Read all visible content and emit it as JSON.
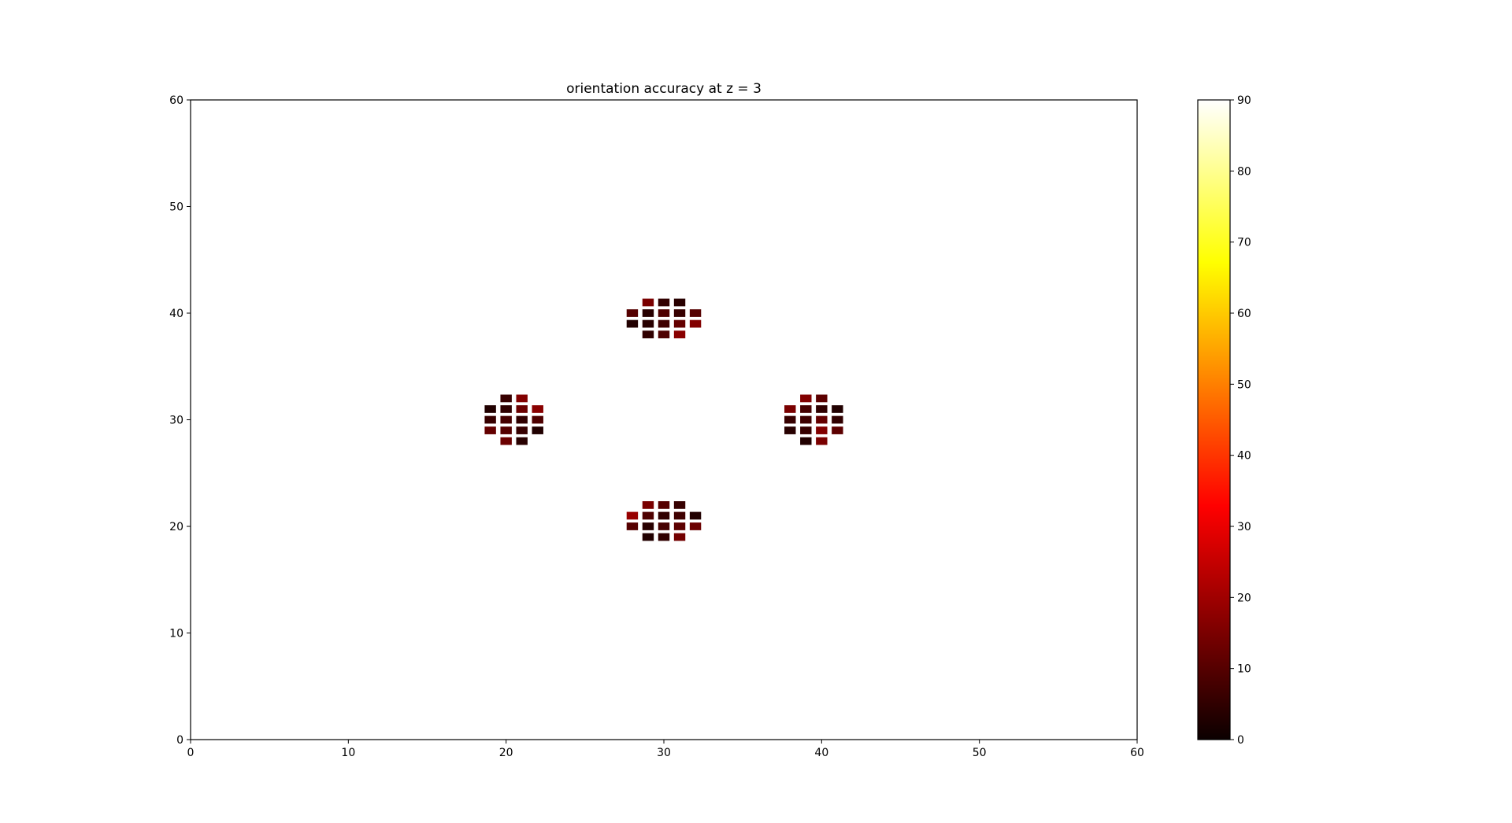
{
  "chart_data": {
    "type": "heatmap",
    "title": "orientation accuracy at z = 3",
    "xlabel": "",
    "ylabel": "",
    "xlim": [
      0,
      60
    ],
    "ylim": [
      0,
      60
    ],
    "x_ticks": [
      0,
      10,
      20,
      30,
      40,
      50,
      60
    ],
    "y_ticks": [
      0,
      10,
      20,
      30,
      40,
      50,
      60
    ],
    "grid": false,
    "colormap": "hot",
    "colorbar": {
      "range": [
        0,
        90
      ],
      "ticks": [
        0,
        10,
        20,
        30,
        40,
        50,
        60,
        70,
        80,
        90
      ]
    },
    "points": [
      {
        "x": 29,
        "y": 41,
        "value": 15
      },
      {
        "x": 30,
        "y": 41,
        "value": 5
      },
      {
        "x": 31,
        "y": 41,
        "value": 4
      },
      {
        "x": 28,
        "y": 40,
        "value": 10
      },
      {
        "x": 29,
        "y": 40,
        "value": 4
      },
      {
        "x": 30,
        "y": 40,
        "value": 9
      },
      {
        "x": 31,
        "y": 40,
        "value": 6
      },
      {
        "x": 32,
        "y": 40,
        "value": 10
      },
      {
        "x": 28,
        "y": 39,
        "value": 3
      },
      {
        "x": 29,
        "y": 39,
        "value": 4
      },
      {
        "x": 30,
        "y": 39,
        "value": 7
      },
      {
        "x": 31,
        "y": 39,
        "value": 12
      },
      {
        "x": 32,
        "y": 39,
        "value": 16
      },
      {
        "x": 29,
        "y": 38,
        "value": 5
      },
      {
        "x": 30,
        "y": 38,
        "value": 9
      },
      {
        "x": 31,
        "y": 38,
        "value": 17
      },
      {
        "x": 20,
        "y": 32,
        "value": 6
      },
      {
        "x": 21,
        "y": 32,
        "value": 16
      },
      {
        "x": 19,
        "y": 31,
        "value": 3
      },
      {
        "x": 20,
        "y": 31,
        "value": 5
      },
      {
        "x": 21,
        "y": 31,
        "value": 13
      },
      {
        "x": 22,
        "y": 31,
        "value": 17
      },
      {
        "x": 19,
        "y": 30,
        "value": 6
      },
      {
        "x": 20,
        "y": 30,
        "value": 8
      },
      {
        "x": 21,
        "y": 30,
        "value": 5
      },
      {
        "x": 22,
        "y": 30,
        "value": 9
      },
      {
        "x": 19,
        "y": 29,
        "value": 12
      },
      {
        "x": 20,
        "y": 29,
        "value": 10
      },
      {
        "x": 21,
        "y": 29,
        "value": 6
      },
      {
        "x": 22,
        "y": 29,
        "value": 3
      },
      {
        "x": 20,
        "y": 28,
        "value": 13
      },
      {
        "x": 21,
        "y": 28,
        "value": 4
      },
      {
        "x": 39,
        "y": 32,
        "value": 16
      },
      {
        "x": 40,
        "y": 32,
        "value": 11
      },
      {
        "x": 38,
        "y": 31,
        "value": 15
      },
      {
        "x": 39,
        "y": 31,
        "value": 8
      },
      {
        "x": 40,
        "y": 31,
        "value": 5
      },
      {
        "x": 41,
        "y": 31,
        "value": 3
      },
      {
        "x": 38,
        "y": 30,
        "value": 6
      },
      {
        "x": 39,
        "y": 30,
        "value": 7
      },
      {
        "x": 40,
        "y": 30,
        "value": 12
      },
      {
        "x": 41,
        "y": 30,
        "value": 5
      },
      {
        "x": 38,
        "y": 29,
        "value": 4
      },
      {
        "x": 39,
        "y": 29,
        "value": 6
      },
      {
        "x": 40,
        "y": 29,
        "value": 16
      },
      {
        "x": 41,
        "y": 29,
        "value": 11
      },
      {
        "x": 39,
        "y": 28,
        "value": 3
      },
      {
        "x": 40,
        "y": 28,
        "value": 15
      },
      {
        "x": 29,
        "y": 22,
        "value": 15
      },
      {
        "x": 30,
        "y": 22,
        "value": 10
      },
      {
        "x": 31,
        "y": 22,
        "value": 6
      },
      {
        "x": 28,
        "y": 21,
        "value": 19
      },
      {
        "x": 29,
        "y": 21,
        "value": 9
      },
      {
        "x": 30,
        "y": 21,
        "value": 5
      },
      {
        "x": 31,
        "y": 21,
        "value": 7
      },
      {
        "x": 32,
        "y": 21,
        "value": 3
      },
      {
        "x": 28,
        "y": 20,
        "value": 10
      },
      {
        "x": 29,
        "y": 20,
        "value": 4
      },
      {
        "x": 30,
        "y": 20,
        "value": 8
      },
      {
        "x": 31,
        "y": 20,
        "value": 11
      },
      {
        "x": 32,
        "y": 20,
        "value": 13
      },
      {
        "x": 29,
        "y": 19,
        "value": 3
      },
      {
        "x": 30,
        "y": 19,
        "value": 5
      },
      {
        "x": 31,
        "y": 19,
        "value": 14
      }
    ]
  }
}
